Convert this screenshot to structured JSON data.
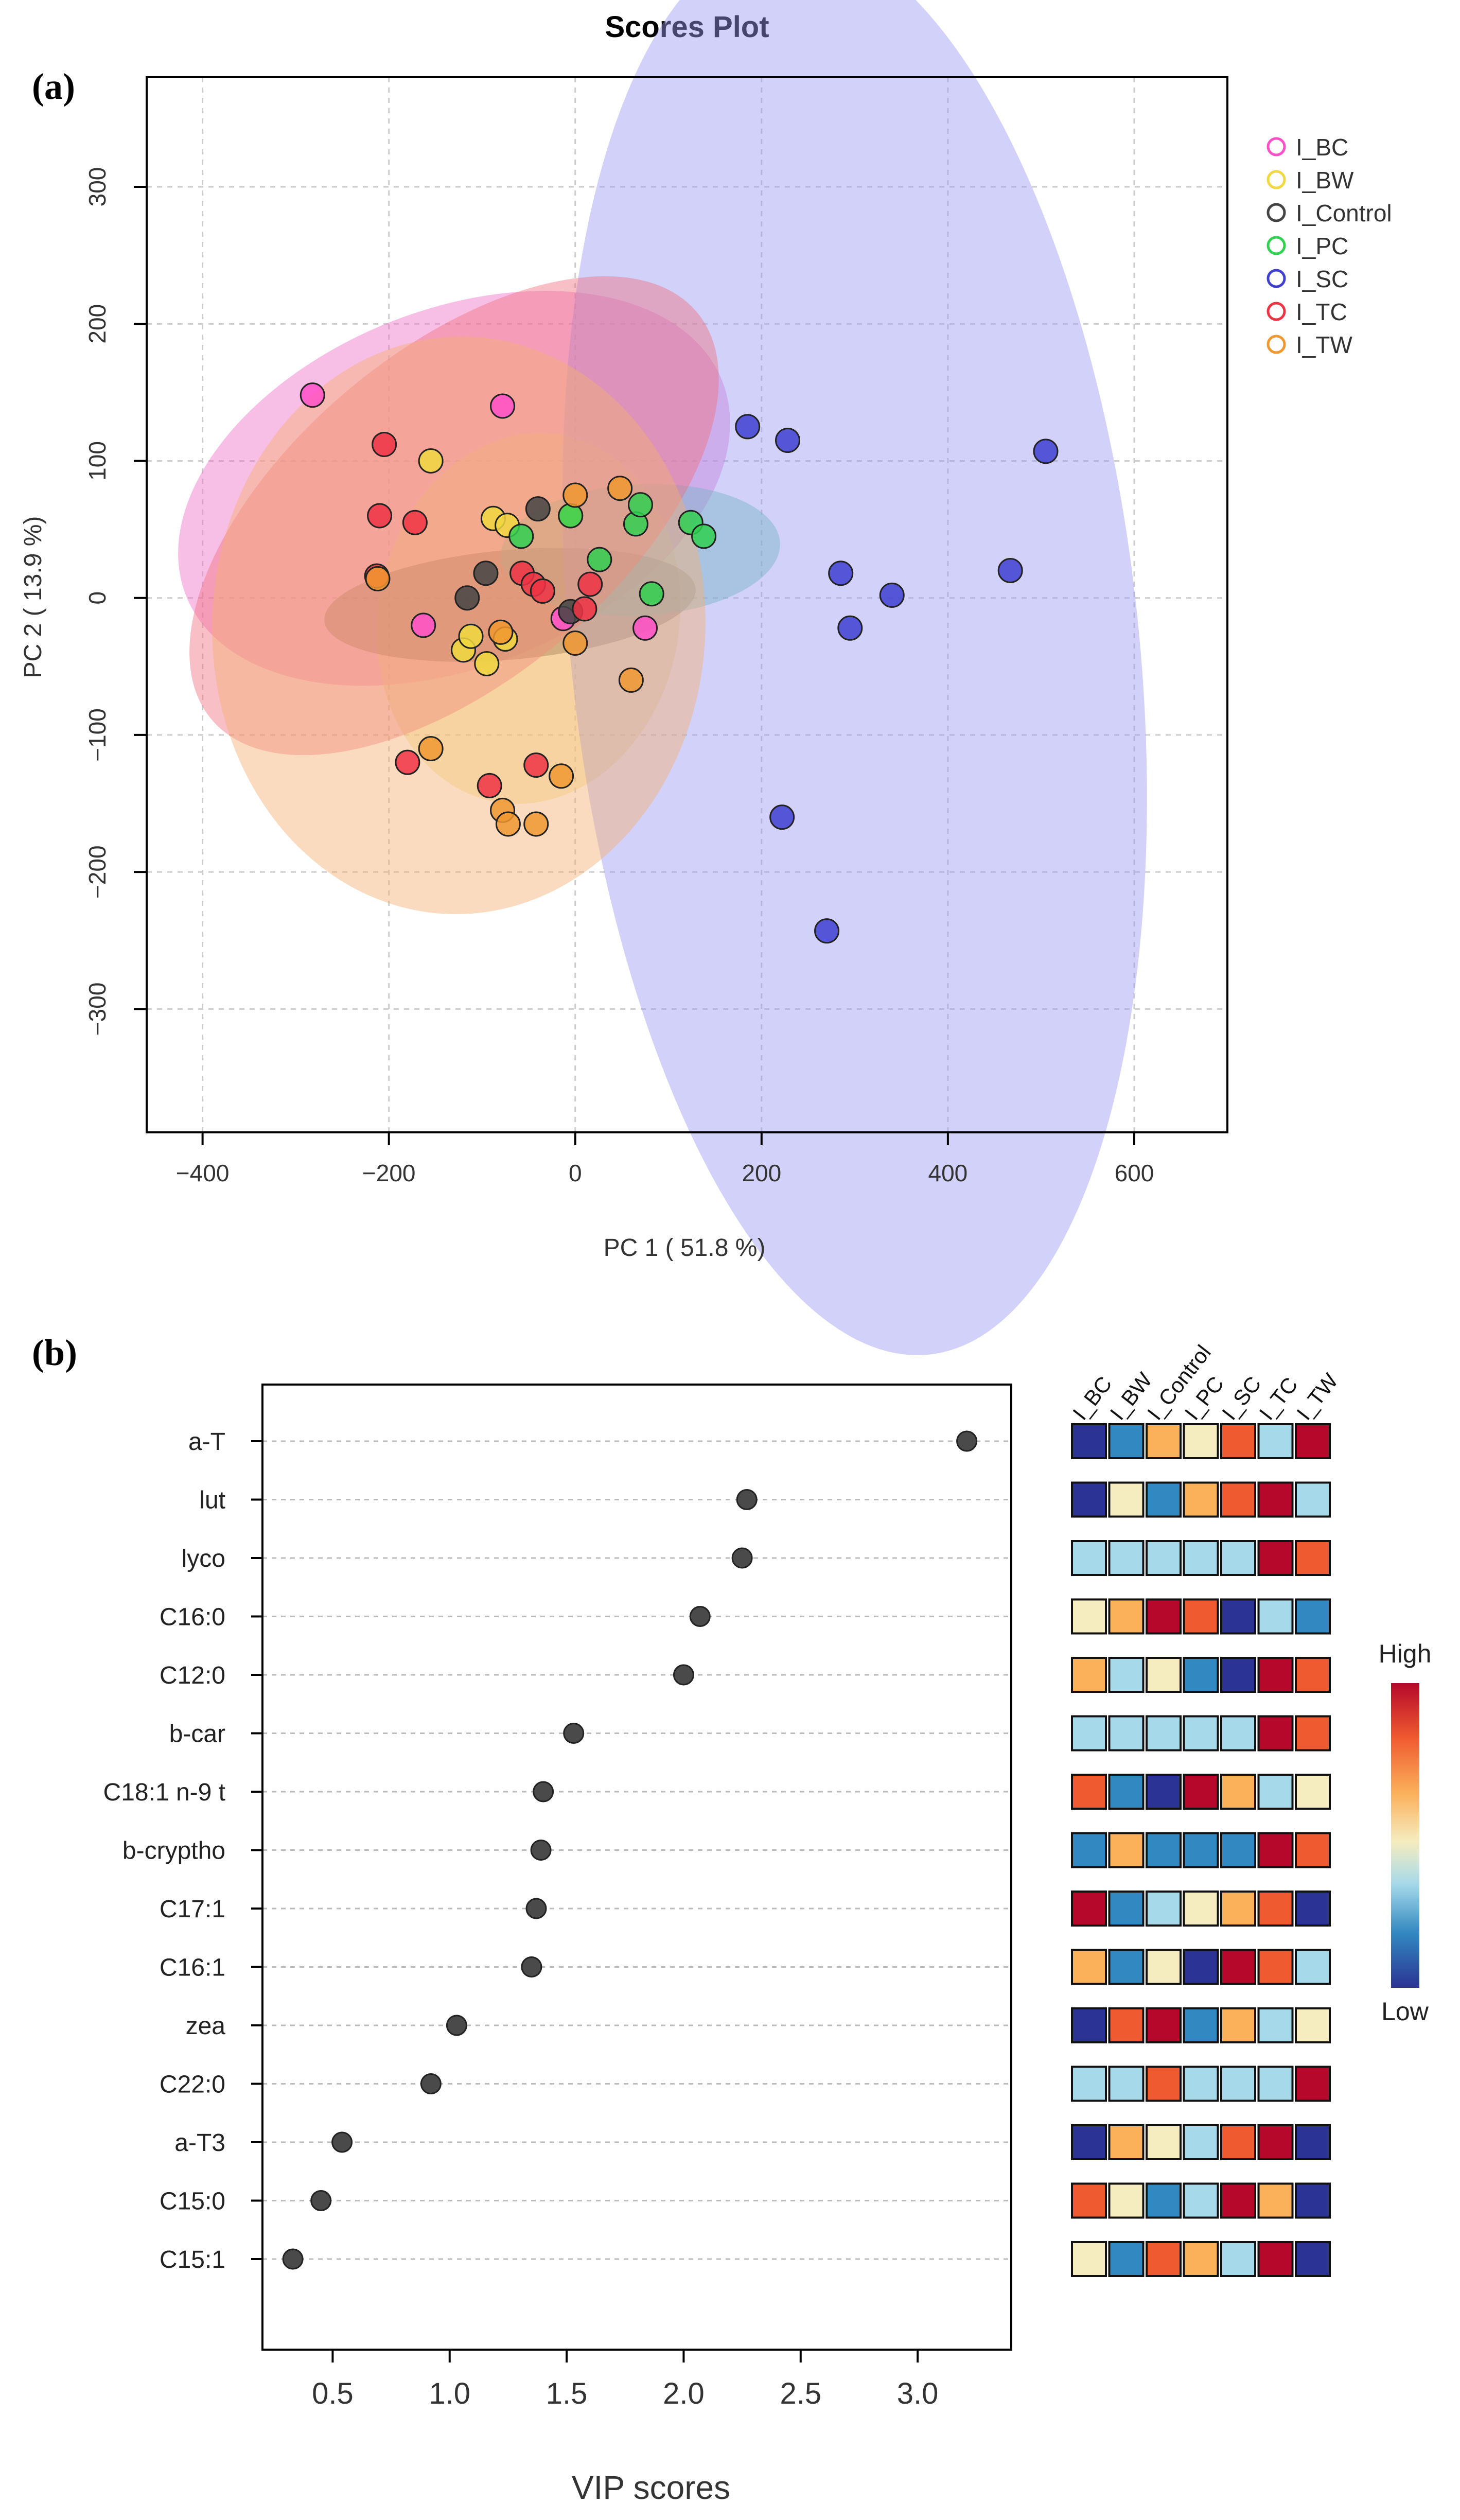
{
  "chart_data": [
    {
      "panel": "(a)",
      "type": "scatter",
      "title": "Scores Plot",
      "xlabel": "PC 1 ( 51.8 %)",
      "ylabel": "PC 2 ( 13.9 %)",
      "xlim": [
        -460,
        700
      ],
      "ylim": [
        -390,
        380
      ],
      "xticks": [
        -400,
        -200,
        0,
        200,
        400,
        600
      ],
      "yticks": [
        -300,
        -200,
        -100,
        0,
        100,
        200,
        300
      ],
      "xtick_labels": [
        "−400",
        "−200",
        "0",
        "200",
        "400",
        "600"
      ],
      "ytick_labels": [
        "−300",
        "−200",
        "−100",
        "0",
        "100",
        "200",
        "300"
      ],
      "grid": true,
      "legend_position": "top-right",
      "series": [
        {
          "name": "I_BC",
          "color": "#ff50c8",
          "fill": "#f070c8",
          "ellipse": {
            "cx": -130,
            "cy": 80,
            "rx": 310,
            "ry": 130,
            "angle_deg": -22
          },
          "points": [
            [
              -282,
              148
            ],
            [
              -78,
              140
            ],
            [
              -163,
              -20
            ],
            [
              -13,
              -15
            ],
            [
              75,
              -22
            ]
          ]
        },
        {
          "name": "I_BW",
          "color": "#f0d840",
          "fill": "#f5e08a",
          "ellipse": {
            "cx": -50,
            "cy": -15,
            "rx": 200,
            "ry": 110,
            "angle_deg": -80
          },
          "points": [
            [
              -155,
              100
            ],
            [
              -88,
              58
            ],
            [
              -73,
              53
            ],
            [
              -5,
              60
            ],
            [
              -120,
              -38
            ],
            [
              -95,
              -48
            ],
            [
              -75,
              -30
            ],
            [
              -112,
              -28
            ]
          ]
        },
        {
          "name": "I_Control",
          "color": "#444444",
          "fill": "#6a5a48",
          "ellipse": {
            "cx": -70,
            "cy": -5,
            "rx": 200,
            "ry": 40,
            "angle_deg": -5
          },
          "points": [
            [
              -96,
              18
            ],
            [
              -116,
              0
            ],
            [
              -5,
              -10
            ],
            [
              -40,
              65
            ]
          ]
        },
        {
          "name": "I_PC",
          "color": "#30d050",
          "fill": "#60c8a0",
          "ellipse": {
            "cx": 70,
            "cy": 35,
            "rx": 150,
            "ry": 48,
            "angle_deg": -3
          },
          "points": [
            [
              -58,
              45
            ],
            [
              -5,
              60
            ],
            [
              26,
              28
            ],
            [
              65,
              54
            ],
            [
              70,
              68
            ],
            [
              82,
              3
            ],
            [
              124,
              55
            ],
            [
              138,
              45
            ]
          ]
        },
        {
          "name": "I_SC",
          "color": "#4040d0",
          "fill": "#9a9af5",
          "ellipse": {
            "cx": 300,
            "cy": -35,
            "rx": 305,
            "ry": 520,
            "angle_deg": -6
          },
          "points": [
            [
              185,
              125
            ],
            [
              228,
              115
            ],
            [
              505,
              107
            ],
            [
              285,
              18
            ],
            [
              467,
              20
            ],
            [
              340,
              2
            ],
            [
              295,
              -22
            ],
            [
              222,
              -160
            ],
            [
              270,
              -243
            ]
          ]
        },
        {
          "name": "I_TC",
          "color": "#ee3344",
          "fill": "#f07080",
          "ellipse": {
            "cx": -130,
            "cy": 60,
            "rx": 340,
            "ry": 120,
            "angle_deg": -40
          },
          "points": [
            [
              -205,
              112
            ],
            [
              -210,
              60
            ],
            [
              -172,
              55
            ],
            [
              -213,
              16
            ],
            [
              -180,
              -120
            ],
            [
              -57,
              18
            ],
            [
              -45,
              10
            ],
            [
              -35,
              5
            ],
            [
              16,
              10
            ],
            [
              10,
              -8
            ],
            [
              -92,
              -137
            ],
            [
              -42,
              -122
            ]
          ]
        },
        {
          "name": "I_TW",
          "color": "#f09830",
          "fill": "#f5b070",
          "ellipse": {
            "cx": -125,
            "cy": -20,
            "rx": 310,
            "ry": 180,
            "angle_deg": -88
          },
          "points": [
            [
              -212,
              14
            ],
            [
              -155,
              -110
            ],
            [
              -78,
              -155
            ],
            [
              -72,
              -165
            ],
            [
              -42,
              -165
            ],
            [
              -15,
              -130
            ],
            [
              0,
              -33
            ],
            [
              0,
              75
            ],
            [
              48,
              80
            ],
            [
              60,
              -60
            ],
            [
              -80,
              -25
            ]
          ]
        }
      ]
    },
    {
      "panel": "(b)",
      "type": "dot",
      "xlabel": "VIP scores",
      "xlim": [
        0.2,
        3.4
      ],
      "xticks": [
        0.5,
        1.0,
        1.5,
        2.0,
        2.5,
        3.0
      ],
      "xtick_labels": [
        "0.5",
        "1.0",
        "1.5",
        "2.0",
        "2.5",
        "3.0"
      ],
      "features": [
        "a-T",
        "lut",
        "lyco",
        "C16:0",
        "C12:0",
        "b-car",
        "C18:1 n-9 t",
        "b-cryptho",
        "C17:1",
        "C16:1",
        "zea",
        "C22:0",
        "a-T3",
        "C15:0",
        "C15:1"
      ],
      "vip_scores": [
        3.21,
        2.27,
        2.25,
        2.07,
        2.0,
        1.53,
        1.4,
        1.39,
        1.37,
        1.35,
        1.03,
        0.92,
        0.54,
        0.45,
        0.33
      ],
      "heatmap": {
        "columns": [
          "I_BC",
          "I_BW",
          "I_Control",
          "I_PC",
          "I_SC",
          "I_TC",
          "I_TW"
        ],
        "legend_high": "High",
        "legend_low": "Low",
        "scale_colors": [
          "#2b3494",
          "#3288c0",
          "#a6d9ea",
          "#f5ecc0",
          "#fbb05a",
          "#f05a30",
          "#b5082a"
        ],
        "values": [
          [
            0,
            1,
            4,
            3,
            5,
            2,
            6
          ],
          [
            0,
            3,
            1,
            4,
            5,
            6,
            2
          ],
          [
            2,
            2,
            2,
            2,
            2,
            6,
            5
          ],
          [
            3,
            4,
            6,
            5,
            0,
            2,
            1
          ],
          [
            4,
            2,
            3,
            1,
            0,
            6,
            5
          ],
          [
            2,
            2,
            2,
            2,
            2,
            6,
            5
          ],
          [
            5,
            1,
            0,
            6,
            4,
            2,
            3
          ],
          [
            1,
            4,
            1,
            1,
            1,
            6,
            5
          ],
          [
            6,
            1,
            2,
            3,
            4,
            5,
            0
          ],
          [
            4,
            1,
            3,
            0,
            6,
            5,
            2
          ],
          [
            0,
            5,
            6,
            1,
            4,
            2,
            3
          ],
          [
            2,
            2,
            5,
            2,
            2,
            2,
            6
          ],
          [
            0,
            4,
            3,
            2,
            5,
            6,
            0
          ],
          [
            5,
            3,
            1,
            2,
            6,
            4,
            0
          ],
          [
            3,
            1,
            5,
            4,
            2,
            6,
            0
          ]
        ]
      }
    }
  ]
}
